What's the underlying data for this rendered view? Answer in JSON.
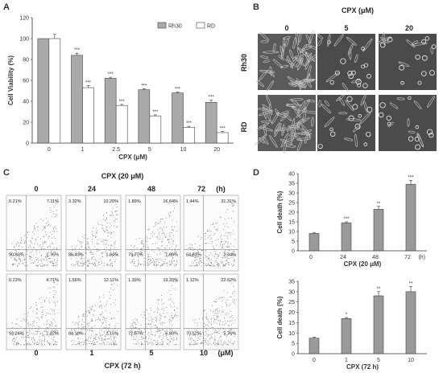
{
  "panels": {
    "a": "A",
    "b": "B",
    "c": "C",
    "d": "D"
  },
  "chart_data": [
    {
      "type": "bar",
      "panel": "A",
      "title": "",
      "ylabel": "Cell Viability (%)",
      "xlabel": "CPX (μM)",
      "categories": [
        "0",
        "1",
        "2.5",
        "5",
        "10",
        "20"
      ],
      "ylim": [
        0,
        120
      ],
      "yticks": [
        "0",
        "20",
        "40",
        "60",
        "80",
        "100",
        "120"
      ],
      "legend": "top-right",
      "series": [
        {
          "name": "Rh30",
          "color": "#aaaaaa",
          "values": [
            100,
            84,
            62,
            51,
            48,
            39
          ],
          "errors": [
            0,
            2,
            1,
            1,
            1,
            2
          ],
          "sig": [
            "",
            "***",
            "***",
            "***",
            "***",
            "***"
          ]
        },
        {
          "name": "RD",
          "color": "#ffffff",
          "values": [
            100,
            53,
            36,
            26,
            15,
            10
          ],
          "errors": [
            4,
            2,
            1,
            1,
            1,
            1
          ],
          "sig": [
            "",
            "***",
            "***",
            "***",
            "***",
            "***"
          ]
        }
      ]
    },
    {
      "type": "bar",
      "panel": "D-top",
      "ylabel": "Cell death (%)",
      "xlabel": "CPX (20 μM)",
      "categories": [
        "0",
        "24",
        "48",
        "72"
      ],
      "unit_label": "(h)",
      "ylim": [
        0,
        40
      ],
      "yticks": [
        "0",
        "5",
        "10",
        "15",
        "20",
        "25",
        "30",
        "35",
        "40"
      ],
      "series": [
        {
          "color": "#9a9a9a",
          "values": [
            9,
            14.5,
            21.5,
            34.5
          ],
          "errors": [
            0.5,
            0.5,
            1.5,
            2
          ],
          "sig": [
            "",
            "***",
            "**",
            "***"
          ]
        }
      ]
    },
    {
      "type": "bar",
      "panel": "D-bottom",
      "ylabel": "Cell death (%)",
      "xlabel": "CPX (72 h)",
      "categories": [
        "0",
        "1",
        "5",
        "10"
      ],
      "ylim": [
        0,
        35
      ],
      "yticks": [
        "0",
        "5",
        "10",
        "15",
        "20",
        "25",
        "30",
        "35"
      ],
      "series": [
        {
          "color": "#9a9a9a",
          "values": [
            7.5,
            17,
            28,
            30
          ],
          "errors": [
            0.5,
            0.5,
            2,
            2.5
          ],
          "sig": [
            "",
            "*",
            "**",
            "**"
          ]
        }
      ]
    }
  ],
  "micrographs": {
    "header": "CPX (μM)",
    "columns": [
      "0",
      "5",
      "20"
    ],
    "rows": [
      "Rh30",
      "RD"
    ]
  },
  "flow": {
    "top_header": "CPX (20 μM)",
    "top_columns": [
      "0",
      "24",
      "48",
      "72"
    ],
    "top_unit": "(h)",
    "bottom_columns": [
      "0",
      "1",
      "5",
      "10"
    ],
    "bottom_unit": "(μM)",
    "bottom_header": "CPX (72 h)",
    "top_row": [
      {
        "ul": "0.21%",
        "ur": "7.11%",
        "ll": "90.93%",
        "lr": "1.76%"
      },
      {
        "ul": "3.32%",
        "ur": "10.20%",
        "ll": "85.43%",
        "lr": "1.04%"
      },
      {
        "ul": "1.89%",
        "ur": "16.64%",
        "ll": "79.77%",
        "lr": "1.69%"
      },
      {
        "ul": "1.44%",
        "ur": "31.31%",
        "ll": "64.81%",
        "lr": "2.44%"
      }
    ],
    "bottom_row": [
      {
        "ul": "0.23%",
        "ur": "4.71%",
        "ll": "93.24%",
        "lr": "1.82%"
      },
      {
        "ul": "1.56%",
        "ur": "12.11%",
        "ll": "84.18%",
        "lr": "2.15%"
      },
      {
        "ul": "1.39%",
        "ur": "19.20%",
        "ll": "72.57%",
        "lr": "6.83%"
      },
      {
        "ul": "1.12%",
        "ur": "22.62%",
        "ll": "70.52%",
        "lr": "5.76%"
      }
    ]
  }
}
